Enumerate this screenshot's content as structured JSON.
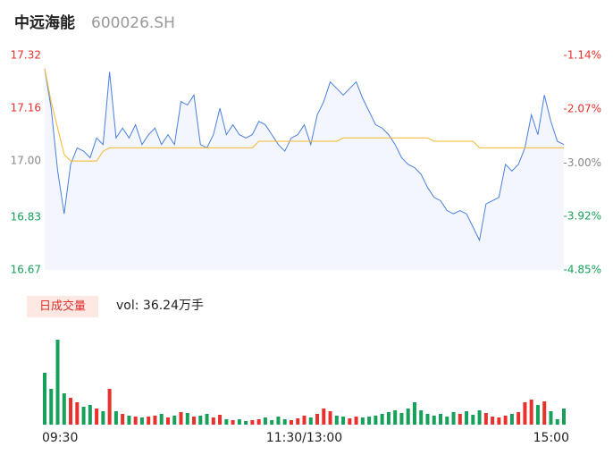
{
  "chart_data": [
    {
      "type": "line",
      "title": "中远海能",
      "subtitle": "600026.SH",
      "x": [
        0,
        3,
        6,
        9,
        12,
        15,
        18,
        21,
        24,
        27,
        30,
        33,
        36,
        39,
        42,
        45,
        48,
        51,
        54,
        57,
        60,
        63,
        66,
        69,
        72,
        75,
        78,
        81,
        84,
        87,
        90,
        93,
        96,
        99,
        102,
        105,
        108,
        111,
        114,
        117,
        120,
        123,
        126,
        129,
        132,
        135,
        138,
        141,
        144,
        147,
        150,
        153,
        156,
        159,
        162,
        165,
        168,
        171,
        174,
        177,
        180,
        183,
        186,
        189,
        192,
        195,
        198,
        201,
        204,
        207,
        210,
        213,
        216,
        219,
        222,
        225,
        228,
        231,
        234,
        237,
        240
      ],
      "xlim": [
        0,
        240
      ],
      "xticks": [
        {
          "value": 0,
          "label": "09:30"
        },
        {
          "value": 120,
          "label": "11:30/13:00"
        },
        {
          "value": 240,
          "label": "15:00"
        }
      ],
      "ylim": [
        16.67,
        17.32
      ],
      "yticks": [
        17.32,
        17.16,
        {
          "value": 17,
          "label": "17.00"
        },
        16.83,
        16.67
      ],
      "y2lim": [
        -4.85,
        -1.14
      ],
      "y2ticks": [
        {
          "value": -1.14,
          "label": "-1.14%"
        },
        {
          "value": -2.07,
          "label": "-2.07%"
        },
        {
          "value": -3,
          "label": "-3.00%"
        },
        {
          "value": -3.92,
          "label": "-3.92%"
        },
        {
          "value": -4.85,
          "label": "-4.85%"
        }
      ],
      "up_color": "#e8312c",
      "down_color": "#16a05a",
      "flat_color": "#888888",
      "area_color": "#f3f6fc",
      "series": [
        {
          "color": "#4a7fe0",
          "values": [
            17.28,
            17.16,
            16.97,
            16.84,
            16.99,
            17.04,
            17.03,
            17.01,
            17.07,
            17.05,
            17.27,
            17.07,
            17.1,
            17.07,
            17.11,
            17.05,
            17.08,
            17.1,
            17.05,
            17.08,
            17.05,
            17.18,
            17.17,
            17.2,
            17.05,
            17.04,
            17.08,
            17.16,
            17.08,
            17.11,
            17.08,
            17.07,
            17.08,
            17.12,
            17.11,
            17.08,
            17.05,
            17.03,
            17.07,
            17.08,
            17.11,
            17.05,
            17.14,
            17.18,
            17.24,
            17.22,
            17.2,
            17.22,
            17.24,
            17.19,
            17.15,
            17.11,
            17.1,
            17.08,
            17.05,
            17.01,
            16.99,
            16.98,
            16.96,
            16.92,
            16.89,
            16.88,
            16.85,
            16.84,
            16.85,
            16.84,
            16.8,
            16.76,
            16.87,
            16.88,
            16.89,
            16.99,
            16.97,
            16.99,
            17.04,
            17.14,
            17.08,
            17.2,
            17.12,
            17.06,
            17.05
          ]
        },
        {
          "color": "#f5b630",
          "values": [
            17.28,
            17.18,
            17.1,
            17.02,
            17.0,
            17.0,
            17.0,
            17.0,
            17.0,
            17.03,
            17.04,
            17.04,
            17.04,
            17.04,
            17.04,
            17.04,
            17.04,
            17.04,
            17.04,
            17.04,
            17.04,
            17.04,
            17.04,
            17.04,
            17.04,
            17.04,
            17.04,
            17.04,
            17.04,
            17.04,
            17.04,
            17.04,
            17.04,
            17.06,
            17.06,
            17.06,
            17.06,
            17.06,
            17.06,
            17.06,
            17.06,
            17.06,
            17.06,
            17.06,
            17.06,
            17.06,
            17.07,
            17.07,
            17.07,
            17.07,
            17.07,
            17.07,
            17.07,
            17.07,
            17.07,
            17.07,
            17.07,
            17.07,
            17.07,
            17.07,
            17.06,
            17.06,
            17.06,
            17.06,
            17.06,
            17.06,
            17.06,
            17.04,
            17.04,
            17.04,
            17.04,
            17.04,
            17.04,
            17.04,
            17.04,
            17.04,
            17.04,
            17.04,
            17.04,
            17.04,
            17.04
          ]
        }
      ]
    },
    {
      "type": "bar",
      "title": "日成交量",
      "annotation": "vol: 36.24万手",
      "ylim": [
        0,
        10000
      ],
      "values": [
        5800,
        4000,
        9500,
        3500,
        3000,
        2500,
        2000,
        2200,
        1800,
        1500,
        4000,
        1500,
        1200,
        1000,
        900,
        800,
        900,
        1000,
        1200,
        800,
        1000,
        1400,
        1300,
        900,
        1000,
        1200,
        800,
        1100,
        600,
        500,
        600,
        400,
        500,
        600,
        800,
        500,
        900,
        600,
        500,
        700,
        1000,
        800,
        1200,
        1800,
        1500,
        1000,
        900,
        700,
        900,
        800,
        900,
        1000,
        1200,
        1400,
        1600,
        1300,
        1800,
        2500,
        1600,
        1200,
        1000,
        1200,
        900,
        1400,
        1200,
        1500,
        1100,
        1600,
        1300,
        900,
        800,
        1000,
        1200,
        1400,
        2500,
        2800,
        2200,
        2600,
        1500,
        600,
        1800
      ]
    }
  ]
}
